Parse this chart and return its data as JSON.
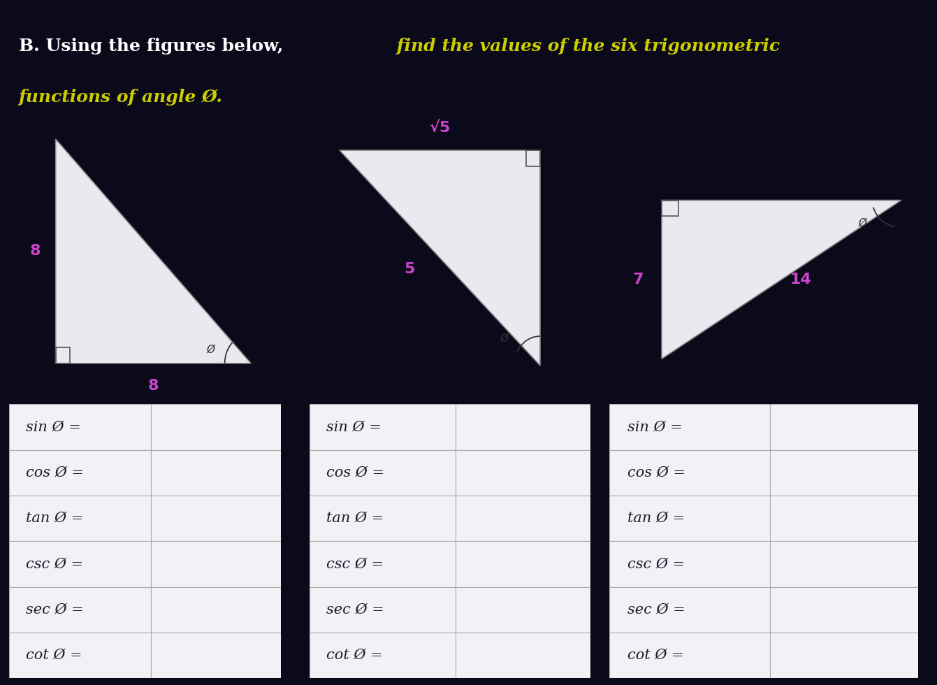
{
  "bg_color": "#0a0a1a",
  "title_bold": "B. Using the figures below,",
  "title_italic": " find the values of the six trigonometric",
  "title_line2": "functions of angle Ø.",
  "title_bold_color": "#ffffff",
  "title_italic_color": "#cccc00",
  "table_bg": "#f0f2f5",
  "table_border": "#aaaaaa",
  "triangle1": {
    "label_vertical": "8",
    "label_horizontal": "8",
    "label_color": "#cc44cc",
    "angle_label": "Ø"
  },
  "triangle2": {
    "label_hyp": "√5",
    "label_vertical": "5",
    "label_color": "#cc44cc",
    "angle_label": "Ø"
  },
  "triangle3": {
    "label_vertical": "7",
    "label_hyp": "14",
    "label_color": "#cc44cc",
    "angle_label": "Ø"
  },
  "trig_functions": [
    "sin Ø =",
    "cos Ø =",
    "tan Ø =",
    "csc Ø =",
    "sec Ø =",
    "cot Ø ="
  ],
  "font_size_trig": 15,
  "font_size_title_bold": 18,
  "font_size_title_italic": 18,
  "font_size_numbers": 16
}
